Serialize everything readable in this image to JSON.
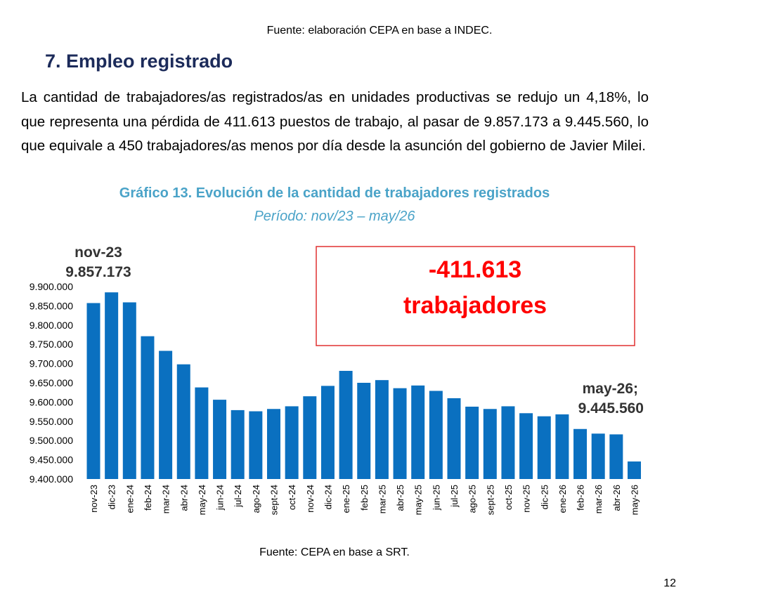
{
  "header": {
    "source_top": "Fuente: elaboración CEPA en base a INDEC."
  },
  "section": {
    "title": "7. Empleo registrado",
    "paragraph": "La cantidad de trabajadores/as registrados/as en unidades productivas se redujo un 4,18%, lo que representa una pérdida de 411.613 puestos de trabajo, al pasar de 9.857.173 a 9.445.560, lo que equivale a 450 trabajadores/as menos por día desde la asunción del gobierno de Javier Milei."
  },
  "footer": {
    "source_bottom": "Fuente: CEPA en base a SRT.",
    "page_number": "12"
  },
  "colors": {
    "bar": "#0a70c0",
    "title": "#4aa3c8",
    "heading": "#1c2b5a",
    "callout": "#ff0000"
  },
  "chart_data": {
    "type": "bar",
    "title": "Gráfico 13. Evolución de la cantidad de trabajadores registrados",
    "subtitle": "Período: nov/23 – may/26",
    "categories": [
      "nov-23",
      "dic-23",
      "ene-24",
      "feb-24",
      "mar-24",
      "abr-24",
      "may-24",
      "jun-24",
      "jul-24",
      "ago-24",
      "sept-24",
      "oct-24",
      "nov-24",
      "dic-24",
      "ene-25",
      "feb-25",
      "mar-25",
      "abr-25",
      "may-25",
      "jun-25",
      "jul-25",
      "ago-25",
      "sept-25",
      "oct-25",
      "nov-25",
      "dic-25",
      "ene-26",
      "feb-26",
      "mar-26",
      "abr-26",
      "may-26"
    ],
    "values": [
      9857173,
      9885000,
      9859000,
      9771000,
      9733000,
      9698000,
      9638000,
      9606000,
      9579000,
      9576000,
      9582000,
      9589000,
      9615000,
      9642000,
      9681000,
      9650000,
      9657000,
      9636000,
      9643000,
      9629000,
      9610000,
      9588000,
      9582000,
      9589000,
      9571000,
      9563000,
      9568000,
      9530000,
      9518000,
      9516000,
      9445560
    ],
    "ylim": [
      9400000,
      9900000
    ],
    "yticks": [
      "9.400.000",
      "9.450.000",
      "9.500.000",
      "9.550.000",
      "9.600.000",
      "9.650.000",
      "9.700.000",
      "9.750.000",
      "9.800.000",
      "9.850.000",
      "9.900.000"
    ],
    "grid": false,
    "annotations": {
      "first": {
        "line1": "nov-23",
        "line2": "9.857.173"
      },
      "last": {
        "line1": "may-26;",
        "line2": "9.445.560"
      },
      "callout": {
        "line1": "-411.613",
        "line2": "trabajadores"
      }
    }
  }
}
